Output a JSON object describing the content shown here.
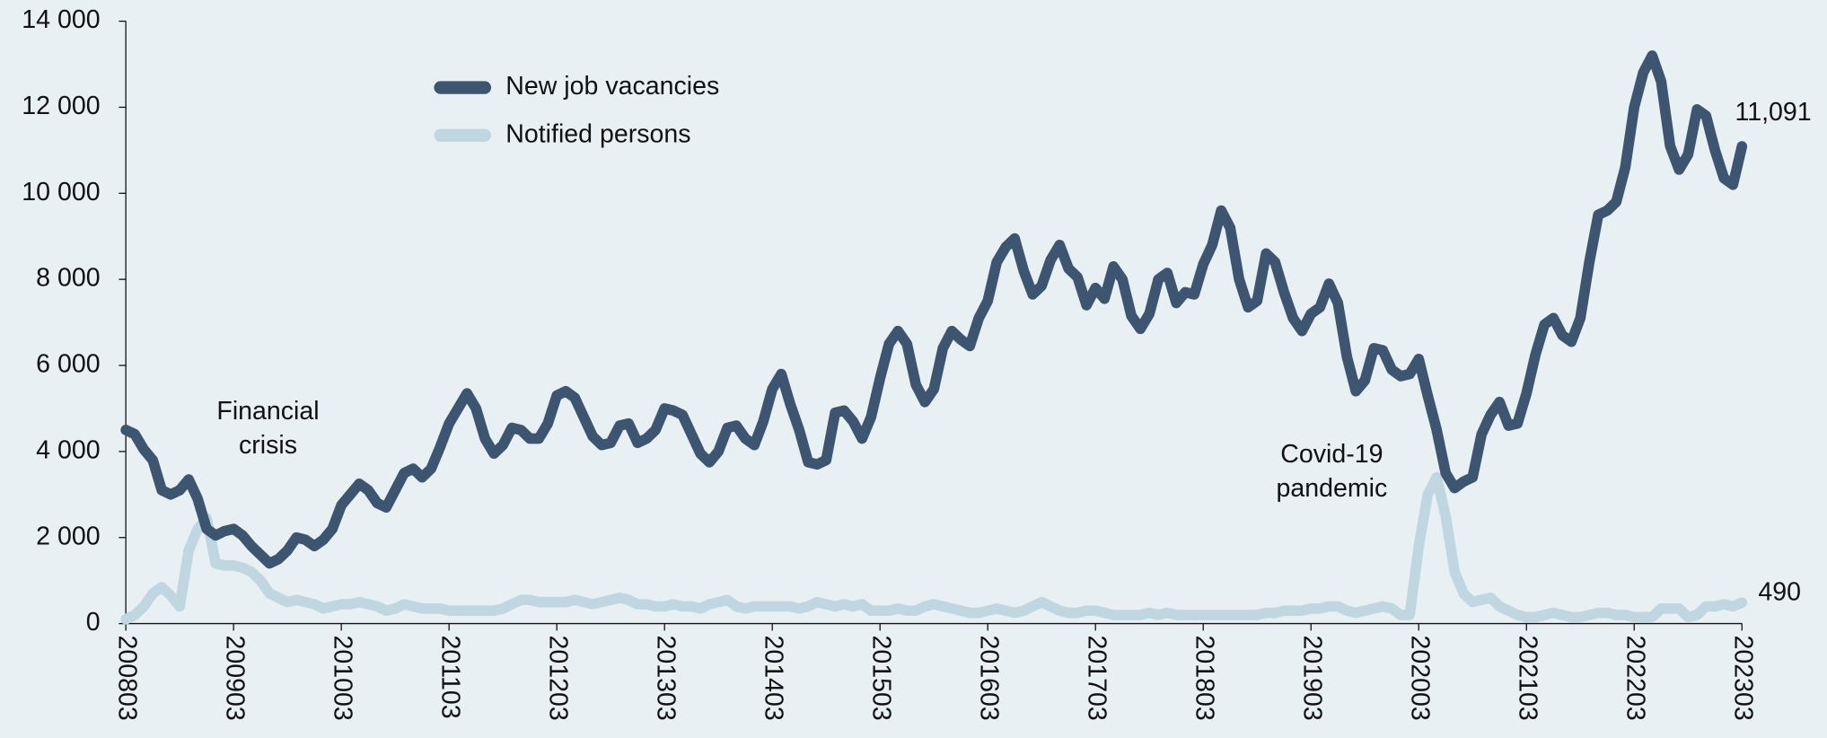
{
  "chart_data": {
    "type": "line",
    "categories": [
      "200803",
      null,
      null,
      null,
      null,
      null,
      null,
      null,
      null,
      null,
      null,
      null,
      "200903",
      null,
      null,
      null,
      null,
      null,
      null,
      null,
      null,
      null,
      null,
      null,
      "201003",
      null,
      null,
      null,
      null,
      null,
      null,
      null,
      null,
      null,
      null,
      null,
      "201103",
      null,
      null,
      null,
      null,
      null,
      null,
      null,
      null,
      null,
      null,
      null,
      "201203",
      null,
      null,
      null,
      null,
      null,
      null,
      null,
      null,
      null,
      null,
      null,
      "201303",
      null,
      null,
      null,
      null,
      null,
      null,
      null,
      null,
      null,
      null,
      null,
      "201403",
      null,
      null,
      null,
      null,
      null,
      null,
      null,
      null,
      null,
      null,
      null,
      "201503",
      null,
      null,
      null,
      null,
      null,
      null,
      null,
      null,
      null,
      null,
      null,
      "201603",
      null,
      null,
      null,
      null,
      null,
      null,
      null,
      null,
      null,
      null,
      null,
      "201703",
      null,
      null,
      null,
      null,
      null,
      null,
      null,
      null,
      null,
      null,
      null,
      "201803",
      null,
      null,
      null,
      null,
      null,
      null,
      null,
      null,
      null,
      null,
      null,
      "201903",
      null,
      null,
      null,
      null,
      null,
      null,
      null,
      null,
      null,
      null,
      null,
      "202003",
      null,
      null,
      null,
      null,
      null,
      null,
      null,
      null,
      null,
      null,
      null,
      "202103",
      null,
      null,
      null,
      null,
      null,
      null,
      null,
      null,
      null,
      null,
      null,
      "202203",
      null,
      null,
      null,
      null,
      null,
      null,
      null,
      null,
      null,
      null,
      null,
      "202303"
    ],
    "series": [
      {
        "name": "New job vacancies",
        "color": "#3d5570",
        "values": [
          4500,
          4400,
          4050,
          3800,
          3100,
          3000,
          3100,
          3350,
          2900,
          2200,
          2050,
          2150,
          2200,
          2050,
          1800,
          1600,
          1400,
          1500,
          1700,
          2000,
          1950,
          1800,
          1950,
          2200,
          2750,
          3000,
          3250,
          3100,
          2800,
          2700,
          3100,
          3500,
          3600,
          3400,
          3600,
          4100,
          4650,
          5000,
          5350,
          5000,
          4300,
          3950,
          4150,
          4550,
          4500,
          4300,
          4300,
          4650,
          5300,
          5400,
          5250,
          4800,
          4350,
          4150,
          4200,
          4600,
          4650,
          4200,
          4300,
          4500,
          5000,
          4950,
          4850,
          4400,
          3950,
          3750,
          4000,
          4550,
          4600,
          4300,
          4150,
          4700,
          5450,
          5800,
          5100,
          4500,
          3750,
          3700,
          3800,
          4900,
          4950,
          4700,
          4300,
          4800,
          5700,
          6500,
          6800,
          6500,
          5550,
          5150,
          5450,
          6400,
          6800,
          6600,
          6450,
          7100,
          7500,
          8400,
          8750,
          8950,
          8200,
          7650,
          7850,
          8450,
          8800,
          8250,
          8050,
          7400,
          7800,
          7550,
          8300,
          8000,
          7150,
          6850,
          7200,
          8000,
          8150,
          7450,
          7700,
          7650,
          8350,
          8800,
          9600,
          9200,
          8000,
          7350,
          7500,
          8600,
          8400,
          7700,
          7100,
          6800,
          7200,
          7350,
          7900,
          7450,
          6200,
          5400,
          5650,
          6400,
          6350,
          5900,
          5750,
          5800,
          6150,
          5300,
          4500,
          3500,
          3150,
          3300,
          3400,
          4400,
          4850,
          5150,
          4600,
          4650,
          5350,
          6250,
          6950,
          7100,
          6700,
          6550,
          7100,
          8400,
          9500,
          9600,
          9800,
          10600,
          12000,
          12800,
          13200,
          12600,
          11100,
          10550,
          10900,
          11950,
          11800,
          11000,
          10350,
          10200,
          11091
        ],
        "value_labels": [
          null,
          null,
          null,
          null,
          null,
          null,
          null,
          null,
          null,
          null,
          null,
          null,
          null,
          null,
          null,
          null,
          null,
          null,
          null,
          null,
          null,
          null,
          null,
          null,
          null,
          null,
          null,
          null,
          null,
          null,
          null,
          null,
          null,
          null,
          null,
          null,
          null,
          null,
          null,
          null,
          null,
          null,
          null,
          null,
          null,
          null,
          null,
          null,
          null,
          null,
          null,
          null,
          null,
          null,
          null,
          null,
          null,
          null,
          null,
          null,
          null,
          null,
          null,
          null,
          null,
          null,
          null,
          null,
          null,
          null,
          null,
          null,
          null,
          null,
          null,
          null,
          null,
          null,
          null,
          null,
          null,
          null,
          null,
          null,
          null,
          null,
          null,
          null,
          null,
          null,
          null,
          null,
          null,
          null,
          null,
          null,
          null,
          null,
          null,
          null,
          null,
          null,
          null,
          null,
          null,
          null,
          null,
          null,
          null,
          null,
          null,
          null,
          null,
          null,
          null,
          null,
          null,
          null,
          null,
          null,
          null,
          null,
          null,
          null,
          null,
          null,
          null,
          null,
          null,
          null,
          null,
          null,
          null,
          null,
          null,
          null,
          null,
          null,
          null,
          null,
          null,
          null,
          null,
          null,
          null,
          null,
          null,
          null,
          null,
          null,
          null,
          null,
          null,
          null,
          null,
          null,
          null,
          null,
          null,
          null,
          null,
          null,
          null,
          null,
          null,
          null,
          null,
          null,
          null,
          null,
          null,
          null,
          null,
          null,
          null,
          null,
          null,
          null,
          null,
          null,
          "11,091"
        ]
      },
      {
        "name": "Notified persons",
        "color": "#c0d7e2",
        "values": [
          100,
          200,
          400,
          700,
          850,
          650,
          400,
          1700,
          2200,
          2450,
          1400,
          1350,
          1350,
          1300,
          1200,
          1000,
          700,
          600,
          500,
          550,
          500,
          450,
          350,
          400,
          450,
          450,
          500,
          450,
          400,
          300,
          350,
          450,
          400,
          350,
          350,
          350,
          300,
          300,
          300,
          300,
          300,
          300,
          350,
          450,
          550,
          550,
          500,
          500,
          500,
          500,
          550,
          500,
          450,
          500,
          550,
          600,
          550,
          450,
          450,
          400,
          400,
          450,
          400,
          400,
          350,
          450,
          500,
          550,
          400,
          350,
          400,
          400,
          400,
          400,
          400,
          350,
          400,
          500,
          450,
          400,
          450,
          400,
          450,
          300,
          300,
          300,
          350,
          300,
          300,
          400,
          450,
          400,
          350,
          300,
          250,
          250,
          300,
          350,
          300,
          250,
          300,
          400,
          500,
          400,
          300,
          250,
          250,
          300,
          300,
          250,
          200,
          200,
          200,
          200,
          250,
          200,
          250,
          200,
          200,
          200,
          200,
          200,
          200,
          200,
          200,
          200,
          200,
          250,
          250,
          300,
          300,
          300,
          350,
          350,
          400,
          400,
          300,
          250,
          300,
          350,
          400,
          350,
          200,
          200,
          1800,
          3000,
          3400,
          2500,
          1200,
          700,
          500,
          550,
          600,
          400,
          300,
          200,
          150,
          150,
          200,
          250,
          200,
          150,
          150,
          200,
          250,
          250,
          200,
          200,
          150,
          150,
          150,
          350,
          350,
          350,
          150,
          200,
          400,
          400,
          450,
          400,
          490
        ]
      }
    ],
    "ylim": [
      0,
      14000
    ],
    "yticks": [
      0,
      {
        "value": 2000,
        "label": "2 000"
      },
      {
        "value": 4000,
        "label": "4 000"
      },
      {
        "value": 6000,
        "label": "6 000"
      },
      {
        "value": 8000,
        "label": "8 000"
      },
      {
        "value": 10000,
        "label": "10 000"
      },
      {
        "value": 12000,
        "label": "12 000"
      },
      {
        "value": 14000,
        "label": "14 000"
      }
    ],
    "legend": "top-left",
    "annotations": [
      {
        "lines": [
          "Financial",
          "crisis"
        ]
      },
      {
        "lines": [
          "Covid-19",
          "pandemic"
        ]
      }
    ]
  }
}
